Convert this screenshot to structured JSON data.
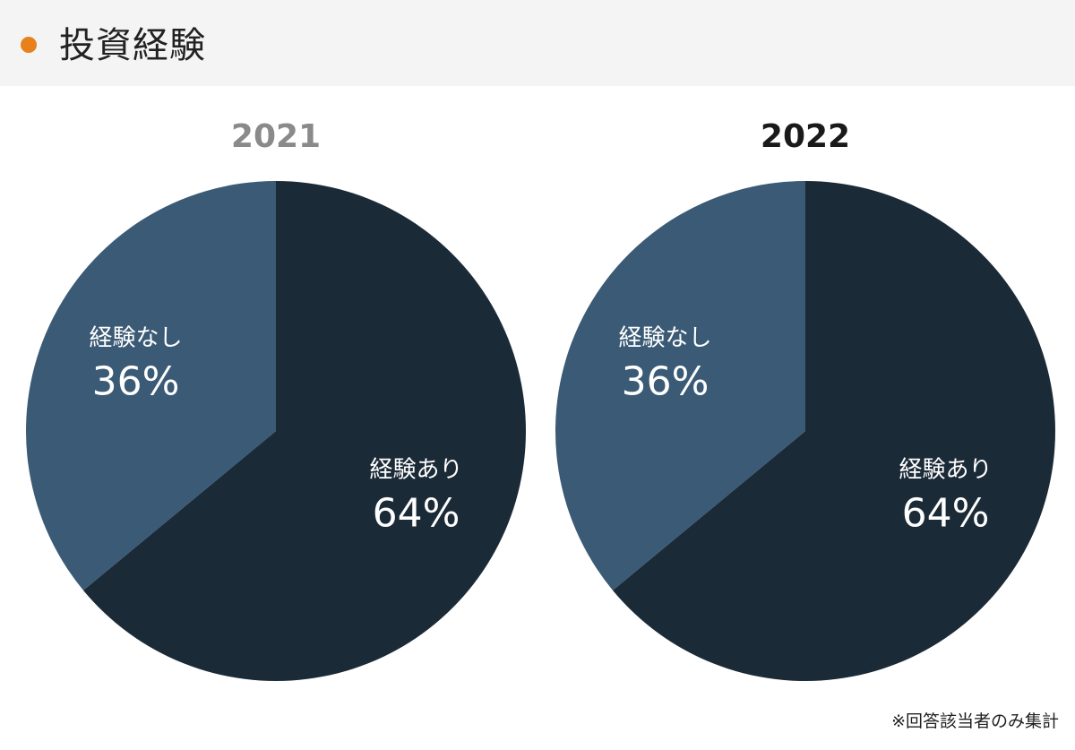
{
  "header": {
    "title": "投資経験",
    "accent_color": "#e8801c"
  },
  "footnote": "※回答該当者のみ集計",
  "chart_data": [
    {
      "type": "pie",
      "title": "2021",
      "title_color": "#8a8a8a",
      "start": "12 o'clock, clockwise",
      "slices": [
        {
          "label": "経験あり",
          "value": 64,
          "value_text": "64%",
          "color": "#1b2a37"
        },
        {
          "label": "経験なし",
          "value": 36,
          "value_text": "36%",
          "color": "#3a5a75"
        }
      ]
    },
    {
      "type": "pie",
      "title": "2022",
      "title_color": "#1a1a1a",
      "start": "12 o'clock, clockwise",
      "slices": [
        {
          "label": "経験あり",
          "value": 64,
          "value_text": "64%",
          "color": "#1b2a37"
        },
        {
          "label": "経験なし",
          "value": 36,
          "value_text": "36%",
          "color": "#3a5a75"
        }
      ]
    }
  ]
}
